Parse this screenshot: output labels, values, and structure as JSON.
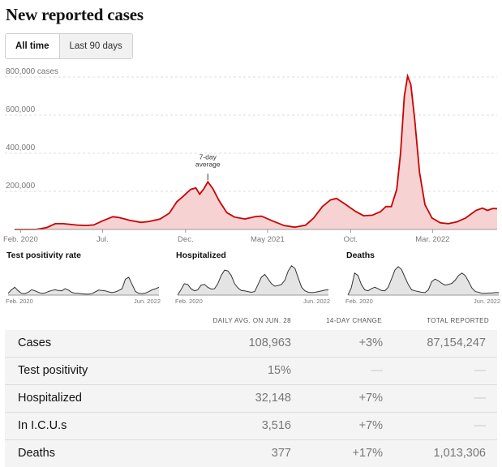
{
  "page": {
    "title": "New reported cases",
    "tabs": [
      {
        "label": "All time",
        "active": true
      },
      {
        "label": "Last 90 days",
        "active": false
      }
    ]
  },
  "colors": {
    "line": "#cc0000",
    "fill": "#f7d2d2",
    "mini_line": "#333333",
    "mini_fill": "#e4e4e4"
  },
  "chart_data": [
    {
      "type": "area",
      "name": "main",
      "ylim": [
        0,
        800000
      ],
      "y_ticks": [
        {
          "value": 200000,
          "label": "200,000"
        },
        {
          "value": 400000,
          "label": "400,000"
        },
        {
          "value": 600000,
          "label": "600,000"
        },
        {
          "value": 800000,
          "label": "800,000 cases"
        }
      ],
      "x_range": [
        "2020-01-21",
        "2022-06-28"
      ],
      "x_ticks": [
        {
          "date": "2020-02-01",
          "label": "Feb. 2020"
        },
        {
          "date": "2020-07-01",
          "label": "Jul."
        },
        {
          "date": "2020-12-01",
          "label": "Dec."
        },
        {
          "date": "2021-05-01",
          "label": "May 2021"
        },
        {
          "date": "2021-10-01",
          "label": "Oct."
        },
        {
          "date": "2022-03-01",
          "label": "Mar. 2022"
        }
      ],
      "annotation": {
        "date": "2021-01-11",
        "value": 250000,
        "lines": [
          "7-day",
          "average"
        ]
      },
      "grid": true,
      "series": [
        {
          "points": [
            [
              "2020-01-21",
              0
            ],
            [
              "2020-03-01",
              500
            ],
            [
              "2020-03-20",
              10000
            ],
            [
              "2020-04-05",
              30000
            ],
            [
              "2020-04-20",
              30000
            ],
            [
              "2020-05-15",
              23000
            ],
            [
              "2020-06-01",
              21000
            ],
            [
              "2020-06-15",
              24000
            ],
            [
              "2020-07-01",
              45000
            ],
            [
              "2020-07-20",
              67000
            ],
            [
              "2020-08-01",
              62000
            ],
            [
              "2020-08-20",
              48000
            ],
            [
              "2020-09-10",
              37000
            ],
            [
              "2020-09-25",
              42000
            ],
            [
              "2020-10-15",
              55000
            ],
            [
              "2020-11-01",
              85000
            ],
            [
              "2020-11-15",
              145000
            ],
            [
              "2020-11-27",
              175000
            ],
            [
              "2020-12-10",
              210000
            ],
            [
              "2020-12-20",
              218000
            ],
            [
              "2020-12-27",
              185000
            ],
            [
              "2021-01-04",
              215000
            ],
            [
              "2021-01-11",
              250000
            ],
            [
              "2021-01-20",
              215000
            ],
            [
              "2021-02-01",
              150000
            ],
            [
              "2021-02-15",
              88000
            ],
            [
              "2021-03-01",
              65000
            ],
            [
              "2021-03-20",
              55000
            ],
            [
              "2021-04-10",
              68000
            ],
            [
              "2021-04-20",
              70000
            ],
            [
              "2021-05-10",
              45000
            ],
            [
              "2021-06-01",
              20000
            ],
            [
              "2021-06-20",
              12000
            ],
            [
              "2021-07-10",
              22000
            ],
            [
              "2021-07-25",
              60000
            ],
            [
              "2021-08-10",
              120000
            ],
            [
              "2021-08-25",
              155000
            ],
            [
              "2021-09-05",
              163000
            ],
            [
              "2021-09-20",
              135000
            ],
            [
              "2021-10-10",
              95000
            ],
            [
              "2021-10-25",
              72000
            ],
            [
              "2021-11-10",
              75000
            ],
            [
              "2021-11-25",
              93000
            ],
            [
              "2021-12-05",
              120000
            ],
            [
              "2021-12-15",
              120000
            ],
            [
              "2021-12-25",
              210000
            ],
            [
              "2022-01-01",
              400000
            ],
            [
              "2022-01-08",
              700000
            ],
            [
              "2022-01-14",
              805000
            ],
            [
              "2022-01-20",
              760000
            ],
            [
              "2022-01-27",
              580000
            ],
            [
              "2022-02-05",
              300000
            ],
            [
              "2022-02-15",
              130000
            ],
            [
              "2022-02-28",
              60000
            ],
            [
              "2022-03-15",
              35000
            ],
            [
              "2022-03-30",
              30000
            ],
            [
              "2022-04-15",
              40000
            ],
            [
              "2022-05-01",
              60000
            ],
            [
              "2022-05-20",
              100000
            ],
            [
              "2022-06-01",
              112000
            ],
            [
              "2022-06-10",
              100000
            ],
            [
              "2022-06-20",
              110000
            ],
            [
              "2022-06-28",
              108963
            ]
          ]
        }
      ]
    },
    {
      "type": "area",
      "name": "test-positivity",
      "title": "Test positivity rate",
      "x_labels": [
        "Feb. 2020",
        "Jun. 2022"
      ],
      "series": [
        {
          "values": [
            0.05,
            0.15,
            0.22,
            0.12,
            0.05,
            0.04,
            0.08,
            0.15,
            0.12,
            0.08,
            0.05,
            0.06,
            0.1,
            0.13,
            0.15,
            0.13,
            0.12,
            0.18,
            0.14,
            0.08,
            0.05,
            0.05,
            0.04,
            0.03,
            0.03,
            0.04,
            0.09,
            0.14,
            0.13,
            0.12,
            0.09,
            0.07,
            0.09,
            0.13,
            0.18,
            0.45,
            0.5,
            0.3,
            0.1,
            0.05,
            0.04,
            0.06,
            0.1,
            0.15,
            0.18,
            0.22
          ]
        }
      ]
    },
    {
      "type": "area",
      "name": "hospitalized",
      "title": "Hospitalized",
      "x_labels": [
        "Feb. 2020",
        "Jun. 2022"
      ],
      "series": [
        {
          "values": [
            0,
            0.15,
            0.32,
            0.3,
            0.18,
            0.12,
            0.15,
            0.28,
            0.3,
            0.22,
            0.17,
            0.18,
            0.32,
            0.55,
            0.7,
            0.68,
            0.55,
            0.32,
            0.2,
            0.13,
            0.12,
            0.1,
            0.08,
            0.1,
            0.3,
            0.5,
            0.58,
            0.45,
            0.32,
            0.25,
            0.27,
            0.3,
            0.42,
            0.68,
            0.82,
            0.75,
            0.48,
            0.22,
            0.12,
            0.08,
            0.07,
            0.08,
            0.1,
            0.12,
            0.14,
            0.15
          ]
        }
      ]
    },
    {
      "type": "area",
      "name": "deaths",
      "title": "Deaths",
      "x_labels": [
        "Feb. 2020",
        "Jun. 2022"
      ],
      "series": [
        {
          "values": [
            0,
            0.2,
            0.62,
            0.55,
            0.3,
            0.15,
            0.12,
            0.18,
            0.22,
            0.18,
            0.13,
            0.12,
            0.22,
            0.45,
            0.7,
            0.8,
            0.72,
            0.5,
            0.3,
            0.15,
            0.12,
            0.1,
            0.08,
            0.07,
            0.15,
            0.38,
            0.45,
            0.4,
            0.33,
            0.28,
            0.3,
            0.33,
            0.42,
            0.55,
            0.62,
            0.55,
            0.38,
            0.2,
            0.1,
            0.08,
            0.05,
            0.05,
            0.06,
            0.06,
            0.07,
            0.07
          ]
        }
      ]
    }
  ],
  "stats": {
    "headers": {
      "avg": "DAILY AVG. ON JUN. 28",
      "change": "14-DAY CHANGE",
      "total": "TOTAL REPORTED"
    },
    "rows": [
      {
        "label": "Cases",
        "avg": "108,963",
        "change": "+3%",
        "total": "87,154,247"
      },
      {
        "label": "Test positivity",
        "avg": "15%",
        "change": "—",
        "total": "—"
      },
      {
        "label": "Hospitalized",
        "avg": "32,148",
        "change": "+7%",
        "total": "—"
      },
      {
        "label": "In I.C.U.s",
        "avg": "3,516",
        "change": "+7%",
        "total": "—"
      },
      {
        "label": "Deaths",
        "avg": "377",
        "change": "+17%",
        "total": "1,013,306"
      }
    ]
  }
}
